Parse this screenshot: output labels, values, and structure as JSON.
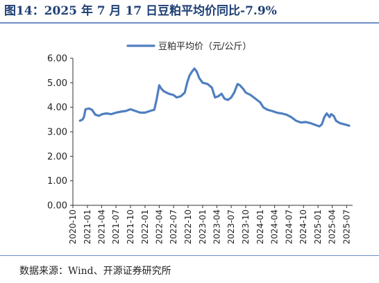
{
  "title": "图14：2025 年 7 月 17 日豆粕平均价同比-7.9%",
  "source": "数据来源：Wind、开源证券研究所",
  "chart_data": {
    "type": "line",
    "legend_position": "top-center",
    "grid": false,
    "ylim": [
      0,
      6
    ],
    "yticks": [
      "0.00",
      "1.00",
      "2.00",
      "3.00",
      "4.00",
      "5.00",
      "6.00"
    ],
    "xticks": [
      "2020-10",
      "2021-01",
      "2021-04",
      "2021-07",
      "2021-10",
      "2022-01",
      "2022-04",
      "2022-07",
      "2022-10",
      "2023-01",
      "2023-04",
      "2023-07",
      "2023-10",
      "2024-01",
      "2024-04",
      "2024-07",
      "2024-10",
      "2025-01",
      "2025-04",
      "2025-07"
    ],
    "series": [
      {
        "name": "豆粕平均价（元/公斤）",
        "color": "#4f7fbf",
        "points": [
          [
            "2020-11-15",
            3.45
          ],
          [
            "2020-12-01",
            3.5
          ],
          [
            "2020-12-10",
            3.6
          ],
          [
            "2020-12-20",
            3.92
          ],
          [
            "2021-01-10",
            3.95
          ],
          [
            "2021-01-30",
            3.9
          ],
          [
            "2021-02-20",
            3.7
          ],
          [
            "2021-03-15",
            3.65
          ],
          [
            "2021-04-05",
            3.72
          ],
          [
            "2021-05-01",
            3.75
          ],
          [
            "2021-06-01",
            3.72
          ],
          [
            "2021-07-01",
            3.78
          ],
          [
            "2021-08-01",
            3.82
          ],
          [
            "2021-09-01",
            3.85
          ],
          [
            "2021-10-01",
            3.92
          ],
          [
            "2021-11-01",
            3.85
          ],
          [
            "2021-12-01",
            3.78
          ],
          [
            "2022-01-01",
            3.78
          ],
          [
            "2022-02-01",
            3.85
          ],
          [
            "2022-03-01",
            3.9
          ],
          [
            "2022-03-15",
            4.3
          ],
          [
            "2022-04-01",
            4.9
          ],
          [
            "2022-04-15",
            4.75
          ],
          [
            "2022-05-01",
            4.65
          ],
          [
            "2022-06-01",
            4.55
          ],
          [
            "2022-07-01",
            4.5
          ],
          [
            "2022-07-20",
            4.4
          ],
          [
            "2022-08-15",
            4.45
          ],
          [
            "2022-09-10",
            4.6
          ],
          [
            "2022-09-25",
            5.0
          ],
          [
            "2022-10-10",
            5.3
          ],
          [
            "2022-10-25",
            5.45
          ],
          [
            "2022-11-10",
            5.58
          ],
          [
            "2022-11-25",
            5.45
          ],
          [
            "2022-12-10",
            5.2
          ],
          [
            "2023-01-01",
            5.0
          ],
          [
            "2023-02-01",
            4.95
          ],
          [
            "2023-03-01",
            4.8
          ],
          [
            "2023-03-20",
            4.4
          ],
          [
            "2023-04-10",
            4.45
          ],
          [
            "2023-05-01",
            4.55
          ],
          [
            "2023-05-20",
            4.35
          ],
          [
            "2023-06-10",
            4.3
          ],
          [
            "2023-07-01",
            4.4
          ],
          [
            "2023-07-20",
            4.6
          ],
          [
            "2023-08-10",
            4.95
          ],
          [
            "2023-08-25",
            4.9
          ],
          [
            "2023-09-15",
            4.75
          ],
          [
            "2023-10-01",
            4.6
          ],
          [
            "2023-11-01",
            4.5
          ],
          [
            "2023-12-01",
            4.35
          ],
          [
            "2024-01-01",
            4.2
          ],
          [
            "2024-01-20",
            4.0
          ],
          [
            "2024-02-15",
            3.9
          ],
          [
            "2024-03-15",
            3.85
          ],
          [
            "2024-04-15",
            3.78
          ],
          [
            "2024-05-15",
            3.75
          ],
          [
            "2024-06-15",
            3.7
          ],
          [
            "2024-07-15",
            3.6
          ],
          [
            "2024-08-15",
            3.45
          ],
          [
            "2024-09-15",
            3.38
          ],
          [
            "2024-10-15",
            3.4
          ],
          [
            "2024-11-15",
            3.35
          ],
          [
            "2024-12-15",
            3.28
          ],
          [
            "2025-01-10",
            3.22
          ],
          [
            "2025-01-25",
            3.3
          ],
          [
            "2025-02-10",
            3.6
          ],
          [
            "2025-02-25",
            3.75
          ],
          [
            "2025-03-15",
            3.6
          ],
          [
            "2025-03-25",
            3.72
          ],
          [
            "2025-04-10",
            3.65
          ],
          [
            "2025-04-25",
            3.45
          ],
          [
            "2025-05-20",
            3.35
          ],
          [
            "2025-06-20",
            3.3
          ],
          [
            "2025-07-17",
            3.25
          ]
        ]
      }
    ]
  }
}
